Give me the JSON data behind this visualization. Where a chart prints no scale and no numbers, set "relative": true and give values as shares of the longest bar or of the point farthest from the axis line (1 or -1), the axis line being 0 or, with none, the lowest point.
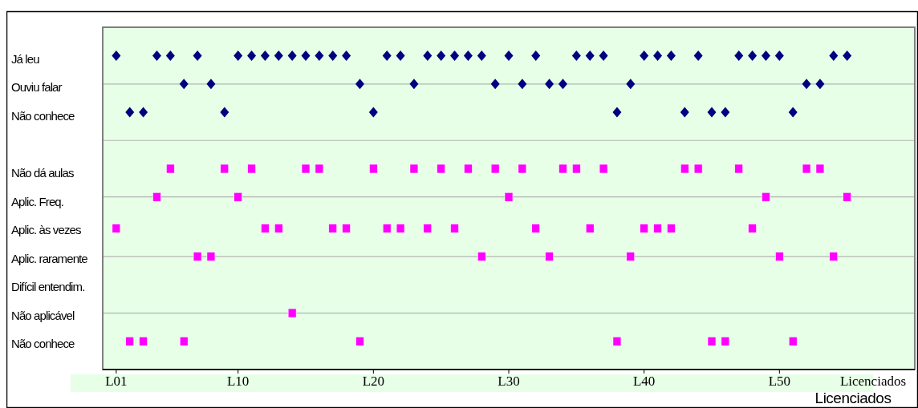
{
  "chart_data": {
    "type": "scatter",
    "relative": true,
    "categories": [
      "L01",
      null,
      null,
      null,
      null,
      null,
      null,
      null,
      null,
      "L10",
      null,
      null,
      null,
      null,
      null,
      null,
      null,
      null,
      null,
      "L20",
      null,
      null,
      null,
      null,
      null,
      null,
      null,
      null,
      null,
      "L30",
      null,
      null,
      null,
      null,
      null,
      null,
      null,
      null,
      null,
      "L40",
      null,
      null,
      null,
      null,
      null,
      null,
      null,
      null,
      null,
      "L50",
      null,
      null,
      null,
      null,
      null
    ],
    "xlabel": "Licenciados",
    "annotations": [
      "Já leu",
      "Ouviu falar",
      "Não conhece",
      "Não dá aulas",
      "Aplic. Freq.",
      "Aplic. às vezes",
      "Aplic. raramente",
      "Difícil entendim.",
      "Não aplicável",
      "Não conhece",
      "Licenciados"
    ],
    "ref_lines": [
      {
        "axis": "y",
        "value": 0.91,
        "color": "#b4b4b4"
      },
      {
        "axis": "y",
        "value": 0.73,
        "color": "#b4b4b4"
      },
      {
        "axis": "y",
        "value": 0.55,
        "color": "#b4b4b4"
      },
      {
        "axis": "y",
        "value": 0.36,
        "color": "#b4b4b4"
      },
      {
        "axis": "y",
        "value": 0.18,
        "color": "#b4b4b4"
      }
    ],
    "series": [
      {
        "color": "#000080",
        "marker": "diamond",
        "values": [
          1,
          0.82,
          0.82,
          1,
          1,
          0.91,
          1,
          0.91,
          0.82,
          1,
          1,
          1,
          1,
          1,
          1,
          1,
          1,
          1,
          0.91,
          0.82,
          1,
          1,
          0.91,
          1,
          1,
          1,
          1,
          1,
          0.91,
          1,
          0.91,
          1,
          0.91,
          0.91,
          1,
          1,
          1,
          0.82,
          0.91,
          1,
          1,
          1,
          0.82,
          1,
          0.82,
          0.82,
          1,
          1,
          1,
          1,
          0.82,
          0.91,
          0.91,
          1,
          1
        ]
      },
      {
        "color": "#ff00ff",
        "marker": "square",
        "values": [
          0.45,
          0.09,
          0.09,
          0.55,
          0.64,
          0.09,
          0.36,
          0.36,
          0.64,
          0.55,
          0.64,
          0.45,
          0.45,
          0.18,
          0.64,
          0.64,
          0.45,
          0.45,
          0.09,
          0.64,
          0.45,
          0.45,
          0.64,
          0.45,
          0.64,
          0.45,
          0.64,
          0.36,
          0.64,
          0.55,
          0.64,
          0.45,
          0.36,
          0.64,
          0.64,
          0.45,
          0.64,
          0.09,
          0.36,
          0.45,
          0.45,
          0.45,
          0.64,
          0.64,
          0.09,
          0.09,
          0.64,
          0.45,
          0.55,
          0.36,
          0.09,
          0.64,
          0.64,
          0.36,
          0.55
        ]
      }
    ]
  }
}
